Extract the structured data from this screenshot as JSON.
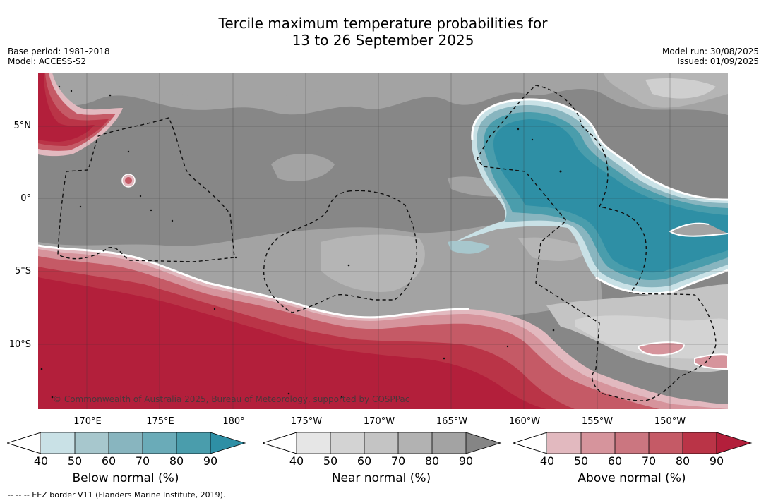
{
  "title": {
    "line1": "Tercile maximum temperature probabilities for",
    "line2": "13 to 26 September 2025"
  },
  "meta_left": {
    "base_period": "Base period: 1981-2018",
    "model": "Model: ACCESS-S2"
  },
  "meta_right": {
    "model_run": "Model run: 30/08/2025",
    "issued": "Issued: 01/09/2025"
  },
  "map": {
    "lat_labels": [
      "5°N",
      "0°",
      "5°S",
      "10°S"
    ],
    "lon_labels": [
      "170°E",
      "175°E",
      "180°",
      "175°W",
      "170°W",
      "165°W",
      "160°W",
      "155°W",
      "150°W"
    ],
    "copyright": "© Commonwealth of Australia 2025, Bureau of Meteorology, supported by COSPPac"
  },
  "colorbars": [
    {
      "title": "Below normal (%)",
      "ticks": [
        "40",
        "50",
        "60",
        "70",
        "80",
        "90"
      ],
      "colors": [
        "#c9e1e6",
        "#a7c7cd",
        "#88b5bf",
        "#6aabb8",
        "#4a9dac",
        "#2e8fa5"
      ]
    },
    {
      "title": "Near normal (%)",
      "ticks": [
        "40",
        "50",
        "60",
        "70",
        "80",
        "90"
      ],
      "colors": [
        "#e6e6e6",
        "#d3d3d3",
        "#c4c4c4",
        "#b2b2b2",
        "#a3a3a3",
        "#858585"
      ]
    },
    {
      "title": "Above normal (%)",
      "ticks": [
        "40",
        "50",
        "60",
        "70",
        "80",
        "90"
      ],
      "colors": [
        "#e2b9bf",
        "#d6949c",
        "#cb7680",
        "#c55a66",
        "#ba3447",
        "#b31f3b"
      ]
    }
  ],
  "footnote": "--  --  -- EEZ border V11 (Flanders Marine Institute, 2019)."
}
